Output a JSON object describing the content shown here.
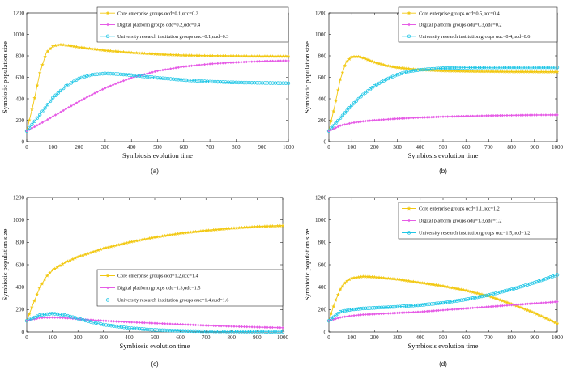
{
  "colors": {
    "yellow": "#f2c811",
    "magenta": "#e65ce6",
    "cyan": "#1fc6e6"
  },
  "chart_data": [
    {
      "type": "line",
      "caption": "(a)",
      "xlabel": "Symbiosis evolution time",
      "ylabel": "Symbiotic population size",
      "xlim": [
        0,
        1000
      ],
      "ylim": [
        0,
        1200
      ],
      "xticks": [
        "0",
        "100",
        "200",
        "300",
        "400",
        "500",
        "600",
        "700",
        "800",
        "900",
        "1000"
      ],
      "yticks": [
        "0",
        "200",
        "400",
        "600",
        "800",
        "1000",
        "1200"
      ],
      "legend_position": "top-right",
      "series": [
        {
          "name": "Core enterprise groups",
          "params": "αcd=0.1,αcc=0.2",
          "marker": "star",
          "color_key": "yellow",
          "x": [
            0,
            25,
            50,
            75,
            100,
            125,
            150,
            200,
            300,
            400,
            500,
            600,
            700,
            800,
            900,
            1000
          ],
          "values": [
            100,
            350,
            640,
            830,
            890,
            905,
            900,
            880,
            850,
            830,
            815,
            805,
            800,
            798,
            796,
            795
          ]
        },
        {
          "name": "Digital platform groups",
          "params": "αdc=0.2,αdc=0.4",
          "marker": "diamond",
          "color_key": "magenta",
          "x": [
            0,
            50,
            100,
            150,
            200,
            250,
            300,
            350,
            400,
            500,
            600,
            700,
            800,
            900,
            1000
          ],
          "values": [
            100,
            165,
            235,
            305,
            375,
            440,
            500,
            550,
            595,
            660,
            700,
            725,
            740,
            750,
            755
          ]
        },
        {
          "name": "University research institution groups",
          "params": "αuc=0.1,αud=0.3",
          "marker": "circle",
          "color_key": "cyan",
          "x": [
            0,
            50,
            100,
            150,
            200,
            250,
            300,
            350,
            400,
            500,
            600,
            700,
            800,
            900,
            1000
          ],
          "values": [
            100,
            250,
            410,
            520,
            590,
            625,
            635,
            630,
            620,
            595,
            575,
            560,
            552,
            548,
            545
          ]
        }
      ]
    },
    {
      "type": "line",
      "caption": "(b)",
      "xlabel": "Symbiosis evolution time",
      "ylabel": "Symbiotic population size",
      "xlim": [
        0,
        1000
      ],
      "ylim": [
        0,
        1200
      ],
      "xticks": [
        "0",
        "100",
        "200",
        "300",
        "400",
        "500",
        "600",
        "700",
        "800",
        "900",
        "1000"
      ],
      "yticks": [
        "0",
        "200",
        "400",
        "600",
        "800",
        "1000",
        "1200"
      ],
      "legend_position": "top-right",
      "series": [
        {
          "name": "Core enterprise groups",
          "params": "αcd=0.5,αcc=0.4",
          "marker": "star",
          "color_key": "yellow",
          "x": [
            0,
            25,
            50,
            75,
            100,
            125,
            150,
            200,
            250,
            300,
            400,
            500,
            600,
            700,
            800,
            900,
            1000
          ],
          "values": [
            100,
            330,
            580,
            740,
            790,
            795,
            780,
            740,
            710,
            690,
            670,
            660,
            656,
            654,
            652,
            651,
            650
          ]
        },
        {
          "name": "Digital platform groups",
          "params": "αdu=0.3,αdc=0.2",
          "marker": "diamond",
          "color_key": "magenta",
          "x": [
            0,
            50,
            100,
            150,
            200,
            300,
            400,
            500,
            600,
            700,
            800,
            900,
            1000
          ],
          "values": [
            100,
            150,
            175,
            190,
            200,
            215,
            225,
            233,
            238,
            243,
            246,
            249,
            250
          ]
        },
        {
          "name": "University research institution groups",
          "params": "αuc=0.4,αud=0.6",
          "marker": "circle",
          "color_key": "cyan",
          "x": [
            0,
            50,
            100,
            150,
            200,
            250,
            300,
            350,
            400,
            500,
            600,
            700,
            800,
            900,
            1000
          ],
          "values": [
            100,
            220,
            340,
            440,
            520,
            580,
            625,
            655,
            670,
            685,
            690,
            692,
            693,
            693,
            693
          ]
        }
      ]
    },
    {
      "type": "line",
      "caption": "(c)",
      "xlabel": "Symbiosis evolution time",
      "ylabel": "Symbiotic population size",
      "xlim": [
        0,
        1000
      ],
      "ylim": [
        0,
        1200
      ],
      "xticks": [
        "0",
        "100",
        "200",
        "300",
        "400",
        "500",
        "600",
        "700",
        "800",
        "900",
        "1000"
      ],
      "yticks": [
        "0",
        "200",
        "400",
        "600",
        "800",
        "1000",
        "1200"
      ],
      "legend_position": "bottom-right",
      "series": [
        {
          "name": "Core enterprise groups",
          "params": "αcd=1.2,αcc=1.4",
          "marker": "star",
          "color_key": "yellow",
          "x": [
            0,
            25,
            50,
            75,
            100,
            150,
            200,
            300,
            400,
            500,
            600,
            700,
            800,
            900,
            1000
          ],
          "values": [
            100,
            250,
            390,
            490,
            550,
            620,
            670,
            745,
            800,
            845,
            880,
            905,
            925,
            940,
            948
          ]
        },
        {
          "name": "Digital platform groups",
          "params": "αdu=1.3,αdc=1.5",
          "marker": "diamond",
          "color_key": "magenta",
          "x": [
            0,
            50,
            100,
            150,
            200,
            300,
            400,
            500,
            600,
            700,
            800,
            900,
            1000
          ],
          "values": [
            100,
            125,
            130,
            125,
            115,
            100,
            88,
            78,
            68,
            58,
            50,
            43,
            38
          ]
        },
        {
          "name": "University research institution groups",
          "params": "αuc=1.4,αud=1.6",
          "marker": "circle",
          "color_key": "cyan",
          "x": [
            0,
            50,
            100,
            150,
            200,
            250,
            300,
            400,
            500,
            600,
            700,
            800,
            900,
            1000
          ],
          "values": [
            100,
            150,
            165,
            150,
            120,
            90,
            65,
            35,
            18,
            10,
            6,
            4,
            3,
            2
          ]
        }
      ]
    },
    {
      "type": "line",
      "caption": "(d)",
      "xlabel": "Symbiosis evolution time",
      "ylabel": "Symbiotic population size",
      "xlim": [
        0,
        1000
      ],
      "ylim": [
        0,
        1200
      ],
      "xticks": [
        "0",
        "100",
        "200",
        "300",
        "400",
        "500",
        "600",
        "700",
        "800",
        "900",
        "1000"
      ],
      "yticks": [
        "0",
        "200",
        "400",
        "600",
        "800",
        "1000",
        "1200"
      ],
      "legend_position": "top-right",
      "series": [
        {
          "name": "Core enterprise groups",
          "params": "αcd=1.1,αcc=1.2",
          "marker": "star",
          "color_key": "yellow",
          "x": [
            0,
            25,
            50,
            75,
            100,
            150,
            200,
            300,
            400,
            500,
            600,
            700,
            800,
            900,
            1000
          ],
          "values": [
            100,
            260,
            380,
            450,
            480,
            495,
            490,
            470,
            440,
            410,
            370,
            320,
            250,
            170,
            75
          ]
        },
        {
          "name": "Digital platform groups",
          "params": "αdu=1.3,αdc=1.2",
          "marker": "diamond",
          "color_key": "magenta",
          "x": [
            0,
            50,
            100,
            150,
            200,
            300,
            400,
            500,
            600,
            700,
            800,
            900,
            1000
          ],
          "values": [
            100,
            130,
            145,
            155,
            160,
            170,
            180,
            195,
            210,
            225,
            240,
            255,
            270
          ]
        },
        {
          "name": "University research institution groups",
          "params": "αuc=1.5,αud=1.2",
          "marker": "circle",
          "color_key": "cyan",
          "x": [
            0,
            50,
            100,
            150,
            200,
            300,
            400,
            500,
            600,
            700,
            800,
            900,
            1000
          ],
          "values": [
            100,
            180,
            200,
            210,
            215,
            225,
            240,
            260,
            290,
            330,
            380,
            440,
            510
          ]
        }
      ]
    }
  ]
}
